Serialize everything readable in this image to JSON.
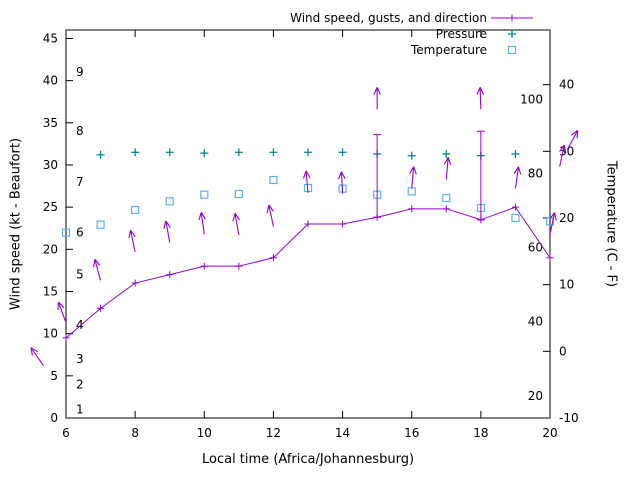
{
  "chart_data": {
    "type": "line",
    "title": "",
    "xlabel": "Local time (Africa/Johannesburg)",
    "ylabel_left": "Wind speed (kt - Beaufort)",
    "ylabel_right": "Temperature (C - F)",
    "grid": false,
    "x_range": [
      6,
      20
    ],
    "x_ticks": [
      6,
      8,
      10,
      12,
      14,
      16,
      18,
      20
    ],
    "y_left_range": [
      0,
      46
    ],
    "y_left_ticks": [
      0,
      5,
      10,
      15,
      20,
      25,
      30,
      35,
      40,
      45
    ],
    "y_right_range": [
      -10,
      48.2
    ],
    "y_right_ticks": [
      -10,
      0,
      10,
      20,
      30,
      40
    ],
    "beaufort_scale_labels": [
      {
        "label": "1",
        "kt": 1
      },
      {
        "label": "2",
        "kt": 4
      },
      {
        "label": "3",
        "kt": 7
      },
      {
        "label": "4",
        "kt": 11
      },
      {
        "label": "5",
        "kt": 17
      },
      {
        "label": "6",
        "kt": 22
      },
      {
        "label": "7",
        "kt": 28
      },
      {
        "label": "8",
        "kt": 34
      },
      {
        "label": "9",
        "kt": 41
      }
    ],
    "fahrenheit_labels": [
      {
        "label": "20",
        "f": 20
      },
      {
        "label": "40",
        "f": 40
      },
      {
        "label": "60",
        "f": 60
      },
      {
        "label": "80",
        "f": 80
      },
      {
        "label": "100",
        "f": 100
      }
    ],
    "legend": {
      "position": "top-right",
      "entries": [
        {
          "label": "Wind speed, gusts, and direction",
          "color": "#9400d3",
          "marker": "line-plus"
        },
        {
          "label": "Pressure",
          "color": "#008b8b",
          "marker": "plus"
        },
        {
          "label": "Temperature",
          "color": "#56b4e9",
          "marker": "square"
        }
      ]
    },
    "x": [
      6,
      7,
      8,
      9,
      10,
      11,
      12,
      13,
      14,
      15,
      16,
      17,
      18,
      19,
      20
    ],
    "series": [
      {
        "name": "wind_speed_kt",
        "axis": "left",
        "type": "line-plus",
        "color": "#9400d3",
        "values": [
          9.5,
          13,
          16,
          17,
          18,
          18,
          19,
          23,
          23,
          23.8,
          24.8,
          24.8,
          23.5,
          25,
          19
        ]
      },
      {
        "name": "wind_gust_kt",
        "axis": "left",
        "type": "errorbar",
        "color": "#9400d3",
        "values": [
          null,
          null,
          null,
          null,
          null,
          null,
          null,
          null,
          null,
          33.6,
          null,
          null,
          34,
          null,
          null
        ]
      },
      {
        "name": "pressure",
        "axis": "left",
        "type": "plus",
        "color": "#008b8b",
        "values": [
          null,
          31.2,
          31.5,
          31.5,
          31.4,
          31.5,
          31.5,
          31.5,
          31.5,
          31.3,
          31.1,
          31.3,
          31.1,
          31.3,
          null
        ]
      },
      {
        "name": "temperature_c",
        "axis": "right",
        "type": "square",
        "color": "#56b4e9",
        "values": [
          17.8,
          19,
          21.2,
          22.5,
          23.5,
          23.6,
          25.7,
          24.5,
          24.4,
          23.5,
          24,
          23,
          21.5,
          20,
          19.5
        ]
      }
    ],
    "wind_direction_arrows": [
      {
        "x": 6,
        "base_kt": 11.3,
        "angle_deg": -20
      },
      {
        "x": 7,
        "base_kt": 16.3,
        "angle_deg": -15
      },
      {
        "x": 8,
        "base_kt": 19.7,
        "angle_deg": -12
      },
      {
        "x": 9,
        "base_kt": 20.8,
        "angle_deg": -10
      },
      {
        "x": 10,
        "base_kt": 21.8,
        "angle_deg": -8
      },
      {
        "x": 11,
        "base_kt": 21.7,
        "angle_deg": -10
      },
      {
        "x": 12,
        "base_kt": 22.7,
        "angle_deg": -12
      },
      {
        "x": 13,
        "base_kt": 26.7,
        "angle_deg": -5
      },
      {
        "x": 14,
        "base_kt": 26.6,
        "angle_deg": -3
      },
      {
        "x": 15,
        "base_kt": 36.6,
        "angle_deg": 0
      },
      {
        "x": 16,
        "base_kt": 27.2,
        "angle_deg": 5
      },
      {
        "x": 17,
        "base_kt": 28.3,
        "angle_deg": 5
      },
      {
        "x": 18,
        "base_kt": 36.6,
        "angle_deg": -2
      },
      {
        "x": 19,
        "base_kt": 27.2,
        "angle_deg": 8
      },
      {
        "x": 20,
        "base_kt": 21.8,
        "angle_deg": 12
      }
    ],
    "clipped_edge_arrows": [
      {
        "x": 5.35,
        "base_kt": 6.2,
        "angle_deg": -35
      },
      {
        "x": 20.28,
        "base_kt": 29.8,
        "angle_deg": 12
      },
      {
        "x": 20.5,
        "base_kt": 31.8,
        "angle_deg": 28
      }
    ],
    "colors": {
      "wind": "#9400d3",
      "pressure": "#008b8b",
      "temperature": "#56b4e9",
      "axis": "#000000",
      "background": "#ffffff"
    }
  }
}
